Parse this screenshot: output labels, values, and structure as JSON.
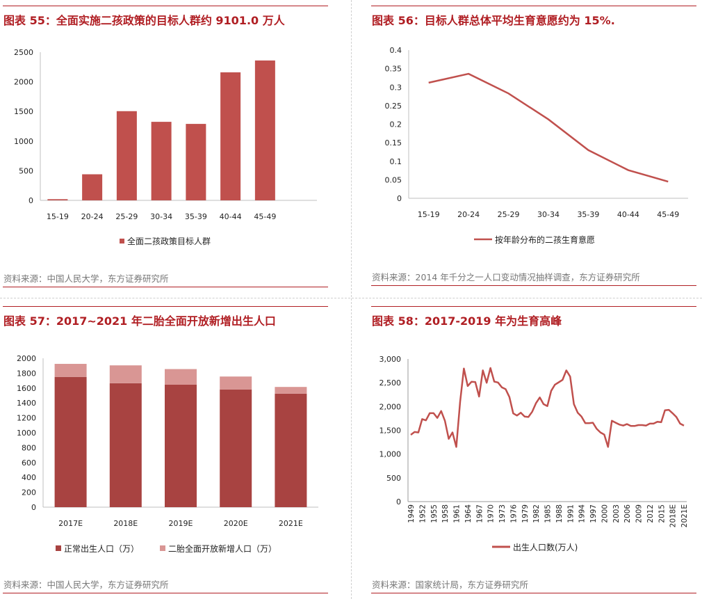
{
  "panels": [
    {
      "title": "图表 55：全面实施二孩政策的目标人群约 9101.0 万人",
      "source": "资料来源：中国人民大学，东方证券研究所",
      "chart_data": {
        "type": "bar",
        "categories": [
          "15-19",
          "20-24",
          "25-29",
          "30-34",
          "35-39",
          "40-44",
          "45-49"
        ],
        "series": [
          {
            "name": "全面二孩政策目标人群",
            "values": [
              20,
              440,
              1505,
              1325,
              1290,
              2160,
              2360
            ],
            "color": "#c0504d"
          }
        ],
        "ylim": [
          0,
          2500
        ],
        "yticks": [
          0,
          500,
          1000,
          1500,
          2000,
          2500
        ],
        "legend": "bottom"
      }
    },
    {
      "title": "图表 56：目标人群总体平均生育意愿约为 15%.",
      "source": "资料来源：2014 年千分之一人口变动情况抽样调查，东方证券研究所",
      "chart_data": {
        "type": "line",
        "categories": [
          "15-19",
          "20-24",
          "25-29",
          "30-34",
          "35-39",
          "40-44",
          "45-49"
        ],
        "series": [
          {
            "name": "按年龄分布的二孩生育意愿",
            "values": [
              0.312,
              0.336,
              0.283,
              0.213,
              0.13,
              0.076,
              0.045
            ],
            "color": "#c0504d"
          }
        ],
        "ylim": [
          0,
          0.4
        ],
        "yticks": [
          0,
          0.05,
          0.1,
          0.15,
          0.2,
          0.25,
          0.3,
          0.35,
          0.4
        ],
        "legend": "bottom"
      }
    },
    {
      "title": "图表 57：2017~2021 年二胎全面开放新增出生人口",
      "source": "资料来源：中国人民大学，东方证券研究所",
      "chart_data": {
        "type": "bar",
        "stacked": true,
        "categories": [
          "2017E",
          "2018E",
          "2019E",
          "2020E",
          "2021E"
        ],
        "series": [
          {
            "name": "正常出生人口（万）",
            "values": [
              1750,
              1665,
              1645,
              1580,
              1525
            ],
            "color": "#a84341"
          },
          {
            "name": "二胎全面开放新增人口（万）",
            "values": [
              175,
              240,
              210,
              175,
              90
            ],
            "color": "#d99694"
          }
        ],
        "ylim": [
          0,
          2000
        ],
        "yticks": [
          0,
          200,
          400,
          600,
          800,
          1000,
          1200,
          1400,
          1600,
          1800,
          2000
        ],
        "legend": "bottom"
      }
    },
    {
      "title": "图表 58：2017-2019 年为生育高峰",
      "source": "资料来源：国家统计局，东方证券研究所",
      "chart_data": {
        "type": "line",
        "x": [
          "1949",
          "1950",
          "1951",
          "1952",
          "1953",
          "1954",
          "1955",
          "1956",
          "1957",
          "1958",
          "1959",
          "1960",
          "1961",
          "1962",
          "1963",
          "1964",
          "1965",
          "1966",
          "1967",
          "1968",
          "1969",
          "1970",
          "1971",
          "1972",
          "1973",
          "1974",
          "1975",
          "1976",
          "1977",
          "1978",
          "1979",
          "1980",
          "1981",
          "1982",
          "1983",
          "1984",
          "1985",
          "1986",
          "1987",
          "1988",
          "1989",
          "1990",
          "1991",
          "1992",
          "1993",
          "1994",
          "1995",
          "1996",
          "1997",
          "1998",
          "1999",
          "2000",
          "2001",
          "2002",
          "2003",
          "2004",
          "2005",
          "2006",
          "2007",
          "2008",
          "2009",
          "2010",
          "2011",
          "2012",
          "2013",
          "2014",
          "2015",
          "2016",
          "2017",
          "2018E",
          "2019E",
          "2020E",
          "2021E"
        ],
        "xtick_labels": [
          "1949",
          "1952",
          "1955",
          "1958",
          "1961",
          "1964",
          "1967",
          "1970",
          "1973",
          "1976",
          "1979",
          "1982",
          "1985",
          "1988",
          "1991",
          "1994",
          "1997",
          "2000",
          "2003",
          "2006",
          "2009",
          "2012",
          "2015",
          "2018E",
          "2021E"
        ],
        "series": [
          {
            "name": "出生人口数(万人)",
            "color": "#c0504d",
            "values": [
              1405,
              1465,
              1455,
              1735,
              1710,
              1860,
              1860,
              1760,
              1905,
              1700,
              1320,
              1455,
              1150,
              2100,
              2800,
              2430,
              2520,
              2515,
              2210,
              2760,
              2500,
              2810,
              2525,
              2505,
              2405,
              2365,
              2200,
              1855,
              1810,
              1870,
              1790,
              1780,
              1890,
              2070,
              2190,
              2050,
              2010,
              2330,
              2460,
              2510,
              2560,
              2760,
              2630,
              2050,
              1870,
              1790,
              1650,
              1650,
              1660,
              1530,
              1455,
              1410,
              1150,
              1700,
              1660,
              1620,
              1600,
              1630,
              1590,
              1590,
              1610,
              1610,
              1600,
              1640,
              1640,
              1680,
              1670,
              1920,
              1930,
              1860,
              1780,
              1640,
              1600
            ]
          }
        ],
        "ylim": [
          0,
          3000
        ],
        "yticks": [
          "0",
          "500",
          "1,000",
          "1,500",
          "2,000",
          "2,500",
          "3,000"
        ],
        "legend": "bottom"
      }
    }
  ]
}
